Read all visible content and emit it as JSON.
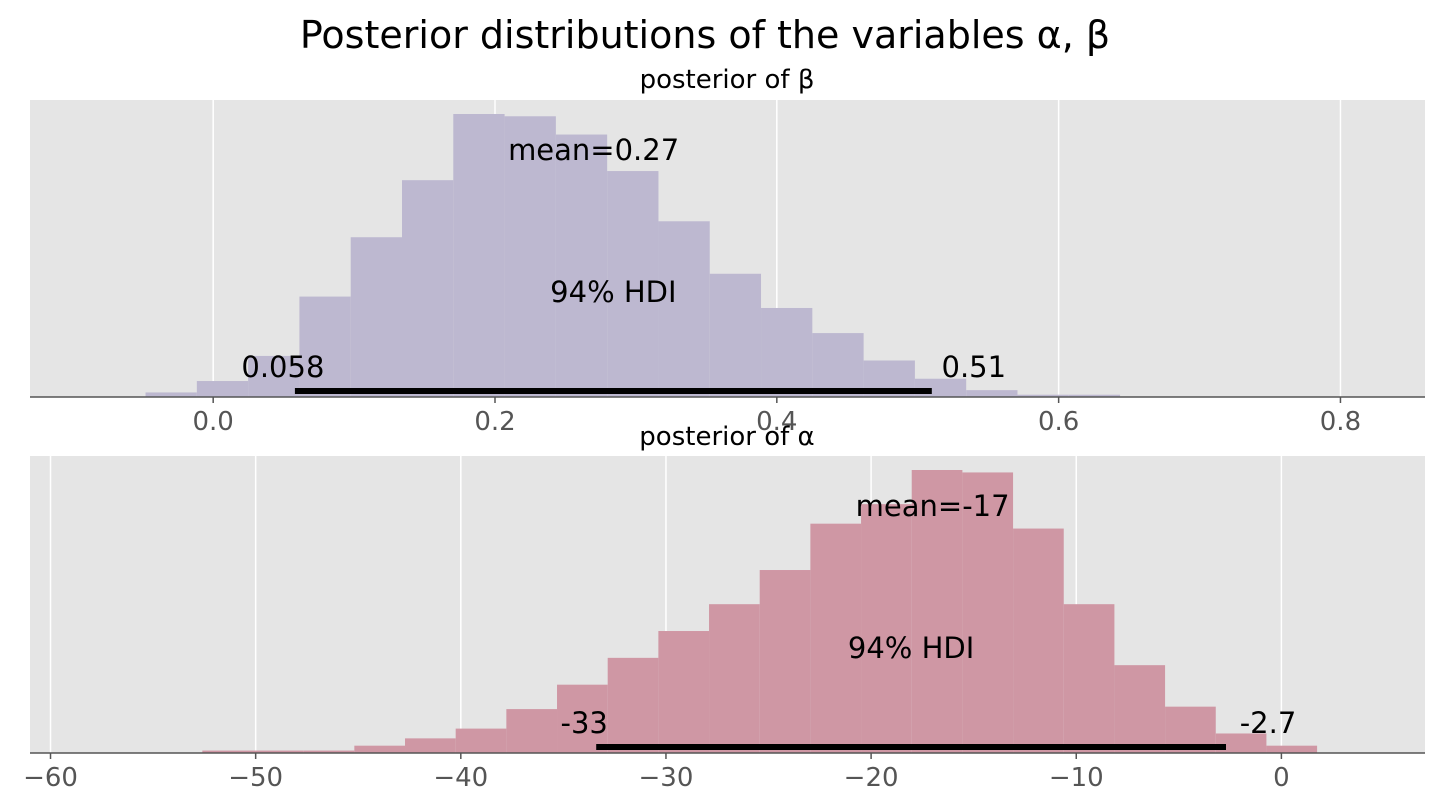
{
  "figure_title": "Posterior distributions of the variables α, β",
  "chart_data": [
    {
      "type": "histogram",
      "title": "posterior of β",
      "xlim": [
        -0.13,
        0.86
      ],
      "xticks": [
        0.0,
        0.2,
        0.4,
        0.6,
        0.8
      ],
      "xtick_labels": [
        "0.0",
        "0.2",
        "0.4",
        "0.6",
        "0.8"
      ],
      "grid": true,
      "color": "#bdb8d0",
      "bin_start": -0.048,
      "bin_width": 0.0364,
      "counts": [
        2,
        7,
        18,
        44,
        70,
        95,
        124,
        123,
        115,
        99,
        77,
        54,
        39,
        28,
        16,
        8,
        3,
        1,
        1
      ],
      "mean_label": "mean=0.27",
      "hdi_label": "94% HDI",
      "hdi": [
        0.058,
        0.51
      ],
      "hdi_low_label": "0.058",
      "hdi_high_label": "0.51"
    },
    {
      "type": "histogram",
      "title": "posterior of α",
      "xlim": [
        -61,
        7
      ],
      "xticks": [
        -60,
        -50,
        -40,
        -30,
        -20,
        -10,
        0
      ],
      "xtick_labels": [
        "−60",
        "−50",
        "−40",
        "−30",
        "−20",
        "−10",
        "0"
      ],
      "grid": true,
      "color": "#cf97a4",
      "bin_start": -52.6,
      "bin_width": 2.47,
      "counts": [
        1,
        1,
        1,
        3,
        6,
        10,
        18,
        28,
        39,
        50,
        61,
        75,
        94,
        102,
        116,
        115,
        92,
        61,
        36,
        19,
        8,
        3
      ],
      "mean_label": "mean=-17",
      "hdi_label": "94% HDI",
      "hdi": [
        -33.4,
        -2.7
      ],
      "hdi_low_label": "-33",
      "hdi_high_label": "-2.7"
    }
  ]
}
